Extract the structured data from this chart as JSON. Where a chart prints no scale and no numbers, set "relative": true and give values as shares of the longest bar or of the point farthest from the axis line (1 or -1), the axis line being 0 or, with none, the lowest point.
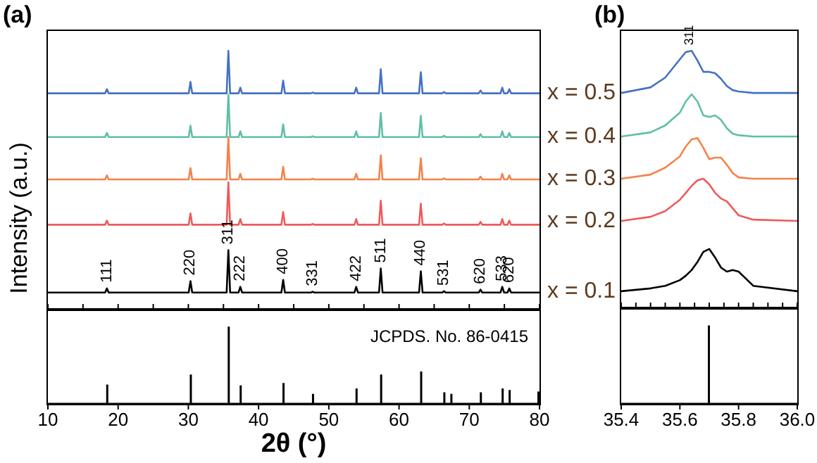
{
  "chart_data": [
    {
      "type": "line",
      "title": "(a)",
      "ylabel": "Intensity (a.u.)",
      "relative": true,
      "xlim": [
        10,
        80
      ],
      "xticks": [
        10,
        15,
        20,
        25,
        30,
        35,
        40,
        45,
        50,
        55,
        60,
        65,
        70,
        75,
        80
      ],
      "tick_labels": false,
      "x": [
        10,
        18.15,
        18.4,
        18.65,
        30.05,
        30.3,
        30.55,
        35.45,
        35.7,
        35.95,
        37.15,
        37.4,
        37.65,
        43.25,
        43.5,
        43.75,
        47.45,
        47.7,
        47.95,
        53.65,
        53.9,
        54.15,
        57.15,
        57.4,
        57.65,
        62.85,
        63.1,
        63.35,
        66.15,
        66.4,
        66.65,
        71.35,
        71.6,
        71.85,
        74.45,
        74.7,
        74.95,
        75.45,
        75.7,
        75.95,
        80
      ],
      "series": [
        {
          "color": "#4472c4",
          "values": [
            0.836,
            0.836,
            0.852,
            0.836,
            0.836,
            0.88,
            0.836,
            0.836,
            1,
            0.836,
            0.836,
            0.858,
            0.836,
            0.836,
            0.885,
            0.836,
            0.836,
            0.839,
            0.836,
            0.836,
            0.858,
            0.836,
            0.836,
            0.929,
            0.836,
            0.836,
            0.918,
            0.836,
            0.836,
            0.841,
            0.836,
            0.836,
            0.847,
            0.836,
            0.836,
            0.858,
            0.836,
            0.836,
            0.852,
            0.836,
            0.836
          ]
        },
        {
          "color": "#5fbfa6",
          "values": [
            0.667,
            0.667,
            0.683,
            0.667,
            0.667,
            0.711,
            0.667,
            0.667,
            0.831,
            0.667,
            0.667,
            0.689,
            0.667,
            0.667,
            0.716,
            0.667,
            0.667,
            0.67,
            0.667,
            0.667,
            0.689,
            0.667,
            0.667,
            0.76,
            0.667,
            0.667,
            0.749,
            0.667,
            0.667,
            0.672,
            0.667,
            0.667,
            0.678,
            0.667,
            0.667,
            0.689,
            0.667,
            0.667,
            0.683,
            0.667,
            0.667
          ]
        },
        {
          "color": "#f5824a",
          "values": [
            0.503,
            0.503,
            0.519,
            0.503,
            0.503,
            0.547,
            0.503,
            0.503,
            0.667,
            0.503,
            0.503,
            0.525,
            0.503,
            0.503,
            0.552,
            0.503,
            0.503,
            0.506,
            0.503,
            0.503,
            0.525,
            0.503,
            0.503,
            0.596,
            0.503,
            0.503,
            0.585,
            0.503,
            0.503,
            0.508,
            0.503,
            0.503,
            0.514,
            0.503,
            0.503,
            0.525,
            0.503,
            0.503,
            0.519,
            0.503,
            0.503
          ]
        },
        {
          "color": "#ef5a5a",
          "values": [
            0.328,
            0.328,
            0.344,
            0.328,
            0.328,
            0.372,
            0.328,
            0.328,
            0.492,
            0.328,
            0.328,
            0.35,
            0.328,
            0.328,
            0.377,
            0.328,
            0.328,
            0.331,
            0.328,
            0.328,
            0.35,
            0.328,
            0.328,
            0.421,
            0.328,
            0.328,
            0.41,
            0.328,
            0.328,
            0.333,
            0.328,
            0.328,
            0.339,
            0.328,
            0.328,
            0.35,
            0.328,
            0.328,
            0.344,
            0.328,
            0.328
          ]
        },
        {
          "color": "#000000",
          "values": [
            0.066,
            0.066,
            0.082,
            0.066,
            0.066,
            0.11,
            0.066,
            0.066,
            0.23,
            0.066,
            0.066,
            0.088,
            0.066,
            0.066,
            0.115,
            0.066,
            0.066,
            0.069,
            0.066,
            0.066,
            0.088,
            0.066,
            0.066,
            0.159,
            0.066,
            0.066,
            0.148,
            0.066,
            0.066,
            0.071,
            0.066,
            0.066,
            0.077,
            0.066,
            0.066,
            0.088,
            0.066,
            0.066,
            0.082,
            0.066,
            0.066
          ]
        }
      ],
      "annotations": [
        {
          "text": "111",
          "x": 18.4,
          "y": 0.082
        },
        {
          "text": "220",
          "x": 30.3,
          "y": 0.11
        },
        {
          "text": "311",
          "x": 35.7,
          "y": 0.23
        },
        {
          "text": "222",
          "x": 37.4,
          "y": 0.088
        },
        {
          "text": "400",
          "x": 43.5,
          "y": 0.115
        },
        {
          "text": "331",
          "x": 47.7,
          "y": 0.069
        },
        {
          "text": "422",
          "x": 53.9,
          "y": 0.088
        },
        {
          "text": "511",
          "x": 57.4,
          "y": 0.159
        },
        {
          "text": "440",
          "x": 63.1,
          "y": 0.148
        },
        {
          "text": "531",
          "x": 66.4,
          "y": 0.071
        },
        {
          "text": "620",
          "x": 71.6,
          "y": 0.077
        },
        {
          "text": "533",
          "x": 74.7,
          "y": 0.088
        },
        {
          "text": "620",
          "x": 75.7,
          "y": 0.082
        }
      ]
    },
    {
      "type": "bar",
      "xlabel": "2θ (°)",
      "relative": true,
      "xlim": [
        10,
        80
      ],
      "xticks": [
        10,
        20,
        30,
        40,
        50,
        60,
        70,
        80
      ],
      "color": "#000000",
      "x": [
        18.4,
        30.3,
        35.7,
        37.4,
        43.5,
        47.7,
        53.9,
        57.4,
        63.1,
        66.4,
        67.4,
        71.6,
        74.7,
        75.7,
        79.8
      ],
      "values": [
        0.25,
        0.38,
        1,
        0.24,
        0.27,
        0.13,
        0.2,
        0.38,
        0.42,
        0.15,
        0.13,
        0.15,
        0.2,
        0.18,
        0.16
      ],
      "annotations": [
        "JCPDS. No. 86-0415"
      ]
    },
    {
      "type": "line",
      "title": "(b)",
      "relative": true,
      "xlim": [
        35.4,
        36
      ],
      "xticks": [
        35.4,
        35.45,
        35.5,
        35.55,
        35.6,
        35.65,
        35.7,
        35.75,
        35.8,
        35.85,
        35.9,
        35.95,
        36
      ],
      "tick_labels": false,
      "x": [
        35.4,
        35.5,
        35.55,
        35.6,
        35.62,
        35.64,
        35.66,
        35.68,
        35.7,
        35.72,
        35.74,
        35.76,
        35.78,
        35.8,
        35.85,
        36
      ],
      "series": [
        {
          "name": "x = 0.5",
          "color": "#4472c4",
          "values": [
            0.836,
            0.858,
            0.896,
            0.967,
            0.995,
            1,
            0.962,
            0.918,
            0.918,
            0.913,
            0.891,
            0.863,
            0.847,
            0.842,
            0.836,
            0.836
          ]
        },
        {
          "name": "x = 0.4",
          "color": "#5fbfa6",
          "values": [
            0.667,
            0.683,
            0.71,
            0.76,
            0.803,
            0.831,
            0.803,
            0.749,
            0.743,
            0.749,
            0.732,
            0.699,
            0.678,
            0.672,
            0.667,
            0.667
          ]
        },
        {
          "name": "x = 0.3",
          "color": "#f5824a",
          "values": [
            0.503,
            0.519,
            0.546,
            0.59,
            0.628,
            0.656,
            0.661,
            0.623,
            0.579,
            0.585,
            0.585,
            0.557,
            0.525,
            0.508,
            0.503,
            0.503
          ]
        },
        {
          "name": "x = 0.2",
          "color": "#ef5a5a",
          "values": [
            0.339,
            0.355,
            0.377,
            0.421,
            0.448,
            0.475,
            0.497,
            0.503,
            0.481,
            0.448,
            0.426,
            0.415,
            0.388,
            0.361,
            0.344,
            0.339
          ]
        },
        {
          "name": "x = 0.1",
          "color": "#000000",
          "values": [
            0.066,
            0.077,
            0.087,
            0.109,
            0.126,
            0.148,
            0.18,
            0.219,
            0.23,
            0.197,
            0.158,
            0.142,
            0.148,
            0.142,
            0.087,
            0.066
          ]
        }
      ],
      "annotations": [
        {
          "text": "311",
          "x": 35.63,
          "y": 1
        }
      ]
    },
    {
      "type": "bar",
      "relative": true,
      "xlim": [
        35.4,
        36
      ],
      "xticks": [
        35.4,
        35.6,
        35.8,
        {
          "value": 36,
          "label": "36.0"
        }
      ],
      "color": "#000000",
      "x": [
        35.7
      ],
      "values": [
        1
      ]
    }
  ]
}
